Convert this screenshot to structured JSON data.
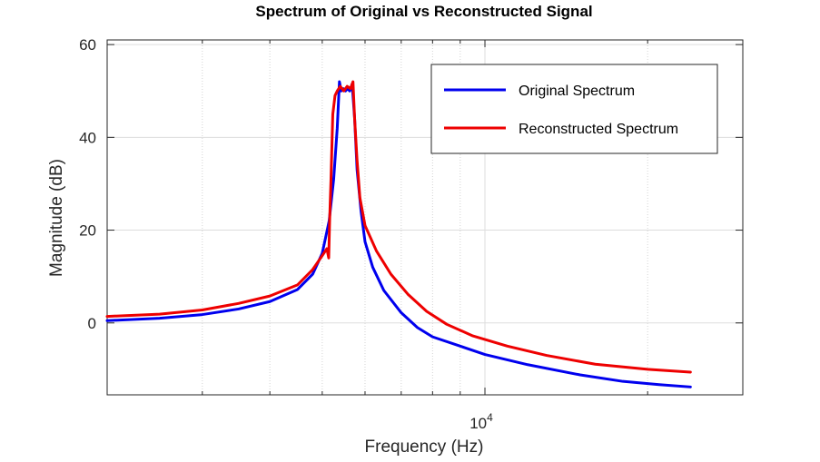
{
  "chart_data": {
    "type": "line",
    "title": "Spectrum of Original vs Reconstructed Signal",
    "xlabel": "Frequency (Hz)",
    "ylabel": "Magnitude (dB)",
    "xscale": "log",
    "xlim": [
      2000,
      30000
    ],
    "ylim": [
      -15.5,
      61
    ],
    "x_tick_labels": [
      {
        "x": 10000,
        "base": "10",
        "exp": "4"
      }
    ],
    "y_ticks": [
      0,
      20,
      40,
      60
    ],
    "y_tick_labels": [
      "0",
      "20",
      "40",
      "60"
    ],
    "grid": true,
    "legend_position": "top-right",
    "series": [
      {
        "name": "Original Spectrum",
        "color": "#0000ee",
        "points": [
          [
            2000,
            0.5
          ],
          [
            2500,
            1.0
          ],
          [
            3000,
            1.8
          ],
          [
            3500,
            3.0
          ],
          [
            4000,
            4.6
          ],
          [
            4500,
            7.2
          ],
          [
            4800,
            10.5
          ],
          [
            5000,
            15.0
          ],
          [
            5150,
            22.0
          ],
          [
            5250,
            31.0
          ],
          [
            5330,
            42.0
          ],
          [
            5380,
            52.0
          ],
          [
            5420,
            50.0
          ],
          [
            5470,
            50.5
          ],
          [
            5520,
            50.0
          ],
          [
            5570,
            50.5
          ],
          [
            5620,
            50.0
          ],
          [
            5680,
            51.5
          ],
          [
            5740,
            44.0
          ],
          [
            5800,
            33.0
          ],
          [
            5900,
            24.0
          ],
          [
            6000,
            17.5
          ],
          [
            6200,
            12.0
          ],
          [
            6500,
            7.0
          ],
          [
            7000,
            2.2
          ],
          [
            7500,
            -1.0
          ],
          [
            8000,
            -3.0
          ],
          [
            9000,
            -5.0
          ],
          [
            10000,
            -6.8
          ],
          [
            12000,
            -9.0
          ],
          [
            15000,
            -11.2
          ],
          [
            18000,
            -12.6
          ],
          [
            21000,
            -13.3
          ],
          [
            24000,
            -13.8
          ]
        ]
      },
      {
        "name": "Reconstructed Spectrum",
        "color": "#ee0000",
        "points": [
          [
            2000,
            1.4
          ],
          [
            2500,
            1.9
          ],
          [
            3000,
            2.8
          ],
          [
            3500,
            4.2
          ],
          [
            4000,
            5.8
          ],
          [
            4500,
            8.2
          ],
          [
            4800,
            11.5
          ],
          [
            5000,
            14.5
          ],
          [
            5100,
            16.0
          ],
          [
            5140,
            14.0
          ],
          [
            5160,
            22.0
          ],
          [
            5190,
            31.0
          ],
          [
            5230,
            45.0
          ],
          [
            5280,
            49.0
          ],
          [
            5330,
            50.0
          ],
          [
            5400,
            51.0
          ],
          [
            5480,
            50.0
          ],
          [
            5560,
            51.0
          ],
          [
            5640,
            50.5
          ],
          [
            5700,
            52.0
          ],
          [
            5740,
            44.0
          ],
          [
            5800,
            35.0
          ],
          [
            5870,
            27.0
          ],
          [
            6000,
            21.0
          ],
          [
            6300,
            15.5
          ],
          [
            6700,
            10.5
          ],
          [
            7200,
            6.2
          ],
          [
            7800,
            2.5
          ],
          [
            8500,
            -0.3
          ],
          [
            9500,
            -2.8
          ],
          [
            11000,
            -5.0
          ],
          [
            13000,
            -7.0
          ],
          [
            16000,
            -8.9
          ],
          [
            20000,
            -10.0
          ],
          [
            24000,
            -10.6
          ]
        ]
      }
    ]
  }
}
